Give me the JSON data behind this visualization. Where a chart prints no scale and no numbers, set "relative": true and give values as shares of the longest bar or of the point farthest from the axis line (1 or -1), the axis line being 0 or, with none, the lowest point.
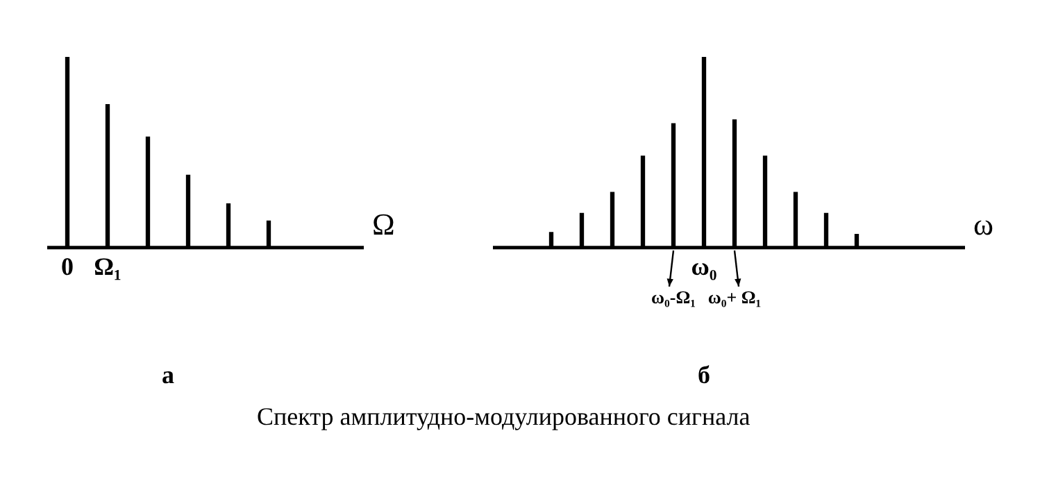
{
  "chart_data": [
    {
      "type": "bar",
      "title": "а",
      "xlabel": "Ω",
      "relative": true,
      "color": "#000000",
      "categories": [
        "0",
        "Ω₁",
        null,
        null,
        null,
        null
      ],
      "values": [
        1,
        0.75,
        0.58,
        0.38,
        0.23,
        0.14
      ]
    },
    {
      "type": "bar",
      "title": "б",
      "xlabel": "ω",
      "relative": true,
      "color": "#000000",
      "categories": [
        null,
        null,
        null,
        null,
        "ω₀-Ω₁",
        "ω₀",
        "ω₀+ Ω₁",
        null,
        null,
        null,
        null
      ],
      "values": [
        0.08,
        0.18,
        0.29,
        0.48,
        0.65,
        1,
        0.67,
        0.48,
        0.29,
        0.18,
        0.07
      ],
      "annotations": [
        "Спектр амплитудно-модулированного сигнала"
      ]
    }
  ]
}
